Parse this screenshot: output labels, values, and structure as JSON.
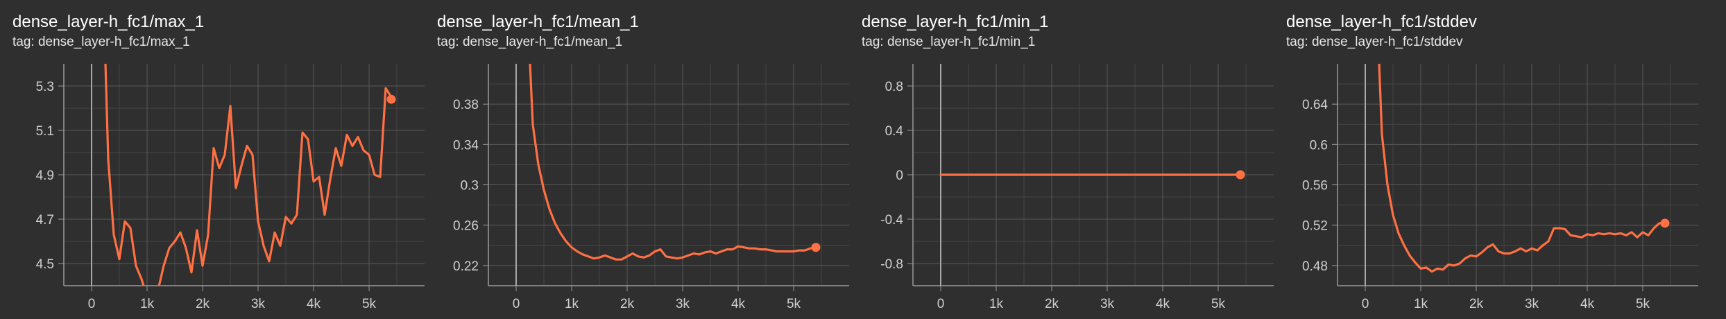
{
  "panels": [
    {
      "title": "dense_layer-h_fc1/max_1",
      "tag": "tag: dense_layer-h_fc1/max_1"
    },
    {
      "title": "dense_layer-h_fc1/mean_1",
      "tag": "tag: dense_layer-h_fc1/mean_1"
    },
    {
      "title": "dense_layer-h_fc1/min_1",
      "tag": "tag: dense_layer-h_fc1/min_1"
    },
    {
      "title": "dense_layer-h_fc1/stddev",
      "tag": "tag: dense_layer-h_fc1/stddev"
    }
  ],
  "colors": {
    "background": "#2f2f2f",
    "series": "#ff7043",
    "grid": "#5a5a5a",
    "axis": "#9a9a9a"
  },
  "chart_data": [
    {
      "type": "line",
      "title": "dense_layer-h_fc1/max_1",
      "xlim": [
        -500,
        6000
      ],
      "ylim": [
        4.4,
        5.4
      ],
      "xticks": [
        0,
        1000,
        2000,
        3000,
        4000,
        5000
      ],
      "xtick_labels": [
        "0",
        "1k",
        "2k",
        "3k",
        "4k",
        "5k"
      ],
      "yticks": [
        4.5,
        4.7,
        4.9,
        5.1,
        5.3
      ],
      "ytick_labels": [
        "4.5",
        "4.7",
        "4.9",
        "5.1",
        "5.3"
      ],
      "grid": true,
      "series": [
        {
          "x": [
            250,
            300,
            400,
            500,
            600,
            700,
            800,
            900,
            1000,
            1150,
            1300,
            1400,
            1500,
            1600,
            1700,
            1800,
            1900,
            2000,
            2100,
            2200,
            2300,
            2400,
            2500,
            2600,
            2700,
            2800,
            2900,
            3000,
            3100,
            3200,
            3300,
            3400,
            3500,
            3600,
            3700,
            3800,
            3900,
            4000,
            4100,
            4200,
            4300,
            4400,
            4500,
            4600,
            4700,
            4800,
            4900,
            5000,
            5100,
            5200,
            5300,
            5400
          ],
          "y": [
            5.4,
            4.97,
            4.63,
            4.52,
            4.69,
            4.66,
            4.49,
            4.43,
            4.35,
            4.33,
            4.49,
            4.57,
            4.6,
            4.64,
            4.57,
            4.46,
            4.65,
            4.49,
            4.63,
            5.02,
            4.93,
            4.99,
            5.21,
            4.84,
            4.94,
            5.03,
            4.99,
            4.69,
            4.58,
            4.51,
            4.64,
            4.58,
            4.71,
            4.68,
            4.72,
            5.09,
            5.06,
            4.87,
            4.89,
            4.72,
            4.88,
            5.02,
            4.94,
            5.08,
            5.03,
            5.07,
            5.01,
            4.99,
            4.9,
            4.89,
            5.29,
            5.25
          ]
        }
      ],
      "end_marker": [
        5400,
        5.24
      ]
    },
    {
      "type": "line",
      "title": "dense_layer-h_fc1/mean_1",
      "xlim": [
        -500,
        6000
      ],
      "ylim": [
        0.2,
        0.42
      ],
      "xticks": [
        0,
        1000,
        2000,
        3000,
        4000,
        5000
      ],
      "xtick_labels": [
        "0",
        "1k",
        "2k",
        "3k",
        "4k",
        "5k"
      ],
      "yticks": [
        0.22,
        0.26,
        0.3,
        0.34,
        0.38
      ],
      "ytick_labels": [
        "0.22",
        "0.26",
        "0.3",
        "0.34",
        "0.38"
      ],
      "grid": true,
      "series": [
        {
          "x": [
            250,
            300,
            400,
            500,
            600,
            700,
            800,
            900,
            1000,
            1100,
            1200,
            1300,
            1400,
            1500,
            1600,
            1700,
            1800,
            1900,
            2000,
            2100,
            2200,
            2300,
            2400,
            2500,
            2600,
            2700,
            2800,
            2900,
            3000,
            3100,
            3200,
            3300,
            3400,
            3500,
            3600,
            3700,
            3800,
            3900,
            4000,
            4100,
            4200,
            4300,
            4400,
            4500,
            4600,
            4700,
            4800,
            4900,
            5000,
            5100,
            5200,
            5300,
            5400
          ],
          "y": [
            0.42,
            0.36,
            0.32,
            0.295,
            0.276,
            0.262,
            0.252,
            0.244,
            0.238,
            0.234,
            0.231,
            0.229,
            0.227,
            0.228,
            0.23,
            0.228,
            0.226,
            0.226,
            0.229,
            0.232,
            0.229,
            0.228,
            0.23,
            0.234,
            0.236,
            0.229,
            0.228,
            0.227,
            0.228,
            0.23,
            0.232,
            0.231,
            0.233,
            0.234,
            0.232,
            0.234,
            0.236,
            0.236,
            0.239,
            0.238,
            0.237,
            0.237,
            0.236,
            0.236,
            0.235,
            0.234,
            0.234,
            0.234,
            0.234,
            0.235,
            0.235,
            0.237,
            0.238
          ]
        }
      ],
      "end_marker": [
        5400,
        0.238
      ]
    },
    {
      "type": "line",
      "title": "dense_layer-h_fc1/min_1",
      "xlim": [
        -500,
        6000
      ],
      "ylim": [
        -1,
        1
      ],
      "xticks": [
        0,
        1000,
        2000,
        3000,
        4000,
        5000
      ],
      "xtick_labels": [
        "0",
        "1k",
        "2k",
        "3k",
        "4k",
        "5k"
      ],
      "yticks": [
        -0.8,
        -0.4,
        0,
        0.4,
        0.8
      ],
      "ytick_labels": [
        "-0.8",
        "-0.4",
        "0",
        "0.4",
        "0.8"
      ],
      "grid": true,
      "series": [
        {
          "x": [
            0,
            5400
          ],
          "y": [
            0,
            0
          ]
        }
      ],
      "end_marker": [
        5400,
        0
      ]
    },
    {
      "type": "line",
      "title": "dense_layer-h_fc1/stddev",
      "xlim": [
        -500,
        6000
      ],
      "ylim": [
        0.46,
        0.68
      ],
      "xticks": [
        0,
        1000,
        2000,
        3000,
        4000,
        5000
      ],
      "xtick_labels": [
        "0",
        "1k",
        "2k",
        "3k",
        "4k",
        "5k"
      ],
      "yticks": [
        0.48,
        0.52,
        0.56,
        0.6,
        0.64
      ],
      "ytick_labels": [
        "0.48",
        "0.52",
        "0.56",
        "0.6",
        "0.64"
      ],
      "grid": true,
      "series": [
        {
          "x": [
            250,
            300,
            400,
            500,
            600,
            700,
            800,
            900,
            1000,
            1100,
            1200,
            1300,
            1400,
            1500,
            1600,
            1700,
            1800,
            1900,
            2000,
            2100,
            2200,
            2300,
            2400,
            2500,
            2600,
            2700,
            2800,
            2900,
            3000,
            3100,
            3200,
            3300,
            3400,
            3500,
            3600,
            3700,
            3800,
            3900,
            4000,
            4100,
            4200,
            4300,
            4400,
            4500,
            4600,
            4700,
            4800,
            4900,
            5000,
            5100,
            5200,
            5300,
            5400
          ],
          "y": [
            0.68,
            0.61,
            0.56,
            0.53,
            0.512,
            0.5,
            0.49,
            0.483,
            0.477,
            0.478,
            0.474,
            0.477,
            0.476,
            0.481,
            0.48,
            0.482,
            0.487,
            0.49,
            0.489,
            0.493,
            0.498,
            0.501,
            0.494,
            0.492,
            0.492,
            0.494,
            0.497,
            0.494,
            0.497,
            0.495,
            0.5,
            0.504,
            0.517,
            0.517,
            0.516,
            0.51,
            0.509,
            0.508,
            0.511,
            0.51,
            0.512,
            0.511,
            0.512,
            0.511,
            0.512,
            0.51,
            0.513,
            0.508,
            0.513,
            0.51,
            0.517,
            0.522,
            0.522
          ]
        }
      ],
      "end_marker": [
        5400,
        0.522
      ]
    }
  ]
}
